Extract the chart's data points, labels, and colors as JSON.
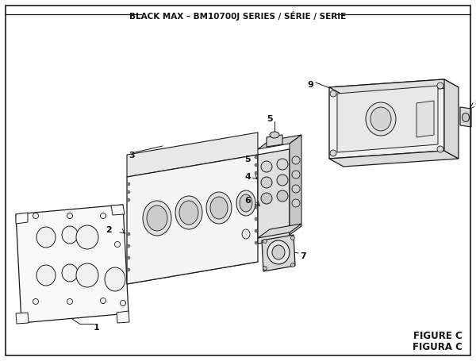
{
  "title": "BLACK MAX – BM10700J SERIES / SÉRIE / SERIE",
  "figure_label": "FIGURE C",
  "figura_label": "FIGURA C",
  "bg_color": "#ffffff",
  "border_color": "#1a1a1a",
  "line_color": "#1a1a1a",
  "text_color": "#111111",
  "fig_width": 6.0,
  "fig_height": 4.55,
  "dpi": 100
}
